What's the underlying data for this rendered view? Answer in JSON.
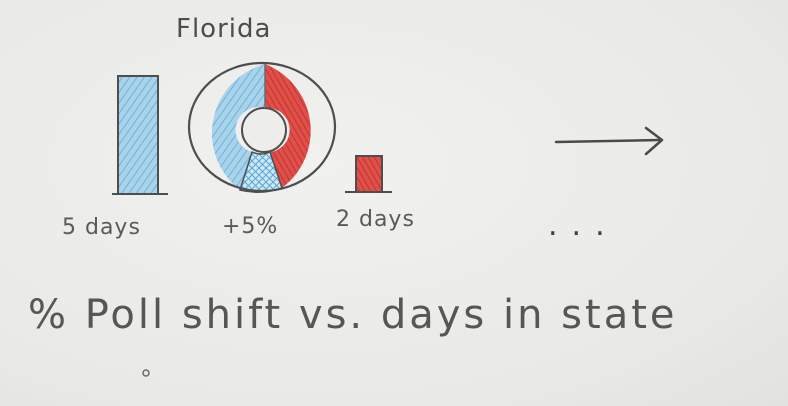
{
  "sketch": {
    "title": "Florida",
    "left_bar_label": "5 days",
    "donut_label": "+5%",
    "right_bar_label": "2 days",
    "ellipsis": "...",
    "caption": "% Poll shift vs. days in state"
  },
  "colors": {
    "blue": "#8cc4e0",
    "red": "#d9433f",
    "pencil": "#4a4a4a",
    "paper": "#ededeb"
  },
  "icons": {
    "arrow": "right-arrow-icon"
  }
}
